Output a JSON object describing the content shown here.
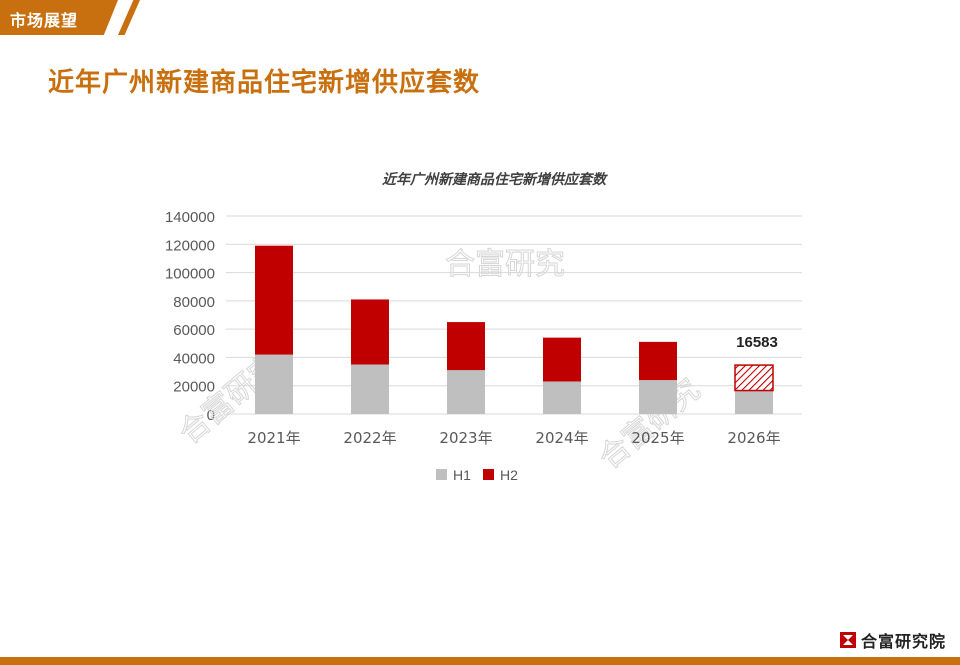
{
  "header": {
    "tag": "市场展望",
    "title": "近年广州新建商品住宅新增供应套数"
  },
  "brand": {
    "name": "合富研究院"
  },
  "colors": {
    "accent": "#c8700f",
    "h1": "#bfbfbf",
    "h2": "#c00000"
  },
  "chart_data": {
    "type": "bar",
    "stacked": true,
    "title": "近年广州新建商品住宅新增供应套数",
    "categories": [
      "2021年",
      "2022年",
      "2023年",
      "2024年",
      "2025年",
      "2026年"
    ],
    "series": [
      {
        "name": "H1",
        "values": [
          42000,
          35000,
          31000,
          23000,
          24000,
          16583
        ]
      },
      {
        "name": "H2",
        "values": [
          77000,
          46000,
          34000,
          31000,
          27000,
          18000
        ]
      }
    ],
    "ylim": [
      0,
      140000
    ],
    "yticks": [
      "0",
      "20000",
      "40000",
      "60000",
      "80000",
      "100000",
      "120000",
      "140000"
    ],
    "grid": true,
    "legend_position": "bottom",
    "annotation": {
      "category": "2026年",
      "text": "16583"
    },
    "watermark": "合富研究"
  }
}
